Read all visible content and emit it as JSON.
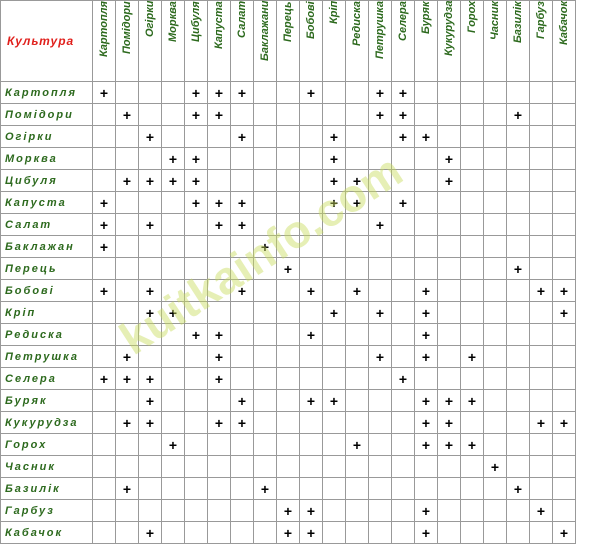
{
  "header": {
    "corner": "Культура",
    "columns": [
      "Картопля",
      "Помідори",
      "Огірки",
      "Морква",
      "Цибуля",
      "Капуста",
      "Салат",
      "Баклажани",
      "Перець",
      "Бобові",
      "Кріп",
      "Редиска",
      "Петрушка",
      "Селера",
      "Буряк",
      "Кукурудза",
      "Горох",
      "Часник",
      "Базилік",
      "Гарбуз",
      "Кабачок"
    ]
  },
  "watermark": "kuitkainfo.com",
  "rows": [
    {
      "name": "Картопля",
      "cells": [
        "+",
        null,
        null,
        null,
        "+",
        "+",
        "+",
        null,
        null,
        "+",
        null,
        null,
        "+",
        "+",
        null,
        null,
        null,
        null,
        null,
        null,
        null
      ]
    },
    {
      "name": "Помідори",
      "cells": [
        null,
        "+",
        null,
        null,
        "+",
        "+",
        null,
        null,
        null,
        null,
        null,
        null,
        "+",
        "+",
        null,
        null,
        null,
        null,
        "+",
        null,
        null
      ]
    },
    {
      "name": "Огірки",
      "cells": [
        null,
        null,
        "+",
        null,
        null,
        null,
        "+",
        null,
        null,
        null,
        "+",
        null,
        null,
        "+",
        "+",
        null,
        null,
        null,
        null,
        null,
        null
      ]
    },
    {
      "name": "Морква",
      "cells": [
        null,
        null,
        null,
        "+",
        "+",
        null,
        null,
        null,
        null,
        null,
        "+",
        null,
        null,
        null,
        null,
        "+",
        null,
        null,
        null,
        null,
        null
      ]
    },
    {
      "name": "Цибуля",
      "cells": [
        null,
        "+",
        "+",
        "+",
        "+",
        null,
        null,
        null,
        null,
        null,
        "+",
        "+",
        null,
        null,
        null,
        "+",
        null,
        null,
        null,
        null,
        null
      ]
    },
    {
      "name": "Капуста",
      "cells": [
        "+",
        null,
        null,
        null,
        "+",
        "+",
        "+",
        null,
        null,
        null,
        "+",
        "+",
        null,
        "+",
        null,
        null,
        null,
        null,
        null,
        null,
        null
      ]
    },
    {
      "name": "Салат",
      "cells": [
        "+",
        null,
        "+",
        null,
        null,
        "+",
        "+",
        null,
        null,
        null,
        null,
        null,
        "+",
        null,
        null,
        null,
        null,
        null,
        null,
        null,
        null
      ]
    },
    {
      "name": "Баклажан",
      "cells": [
        "+",
        null,
        null,
        null,
        null,
        null,
        null,
        "+",
        null,
        null,
        null,
        null,
        null,
        null,
        null,
        null,
        null,
        null,
        null,
        null,
        null
      ]
    },
    {
      "name": "Перець",
      "cells": [
        null,
        null,
        null,
        null,
        null,
        null,
        null,
        null,
        "+",
        null,
        null,
        null,
        null,
        null,
        null,
        null,
        null,
        null,
        "+",
        null,
        null
      ]
    },
    {
      "name": "Бобові",
      "cells": [
        "+",
        null,
        "+",
        null,
        null,
        null,
        "+",
        null,
        null,
        "+",
        null,
        "+",
        null,
        null,
        "+",
        null,
        null,
        null,
        null,
        "+",
        "+"
      ]
    },
    {
      "name": "Кріп",
      "cells": [
        null,
        null,
        "+",
        "+",
        null,
        null,
        null,
        null,
        null,
        null,
        "+",
        null,
        "+",
        null,
        "+",
        null,
        null,
        null,
        null,
        null,
        "+"
      ]
    },
    {
      "name": "Редиска",
      "cells": [
        null,
        null,
        null,
        null,
        "+",
        "+",
        null,
        null,
        null,
        "+",
        null,
        null,
        null,
        null,
        "+",
        null,
        null,
        null,
        null,
        null,
        null
      ]
    },
    {
      "name": "Петрушка",
      "cells": [
        null,
        "+",
        null,
        null,
        null,
        "+",
        null,
        null,
        null,
        null,
        null,
        null,
        "+",
        null,
        "+",
        null,
        "+",
        null,
        null,
        null,
        null
      ]
    },
    {
      "name": "Селера",
      "cells": [
        "+",
        "+",
        "+",
        null,
        null,
        "+",
        null,
        null,
        null,
        null,
        null,
        null,
        null,
        "+",
        null,
        null,
        null,
        null,
        null,
        null,
        null
      ]
    },
    {
      "name": "Буряк",
      "cells": [
        null,
        null,
        "+",
        null,
        null,
        null,
        "+",
        null,
        null,
        "+",
        "+",
        null,
        null,
        null,
        "+",
        "+",
        "+",
        null,
        null,
        null,
        null
      ]
    },
    {
      "name": "Кукурудза",
      "cells": [
        null,
        "+",
        "+",
        null,
        null,
        "+",
        "+",
        null,
        null,
        null,
        null,
        null,
        null,
        null,
        "+",
        "+",
        null,
        null,
        null,
        "+",
        "+"
      ]
    },
    {
      "name": "Горох",
      "cells": [
        null,
        null,
        null,
        "+",
        null,
        null,
        null,
        null,
        null,
        null,
        null,
        "+",
        null,
        null,
        "+",
        "+",
        "+",
        null,
        null,
        null,
        null
      ]
    },
    {
      "name": "Часник",
      "cells": [
        null,
        null,
        null,
        null,
        null,
        null,
        null,
        null,
        null,
        null,
        null,
        null,
        null,
        null,
        null,
        null,
        null,
        "+",
        null,
        null,
        null
      ]
    },
    {
      "name": "Базилік",
      "cells": [
        null,
        "+",
        null,
        null,
        null,
        null,
        null,
        "+",
        null,
        null,
        null,
        null,
        null,
        null,
        null,
        null,
        null,
        null,
        "+",
        null,
        null
      ]
    },
    {
      "name": "Гарбуз",
      "cells": [
        null,
        null,
        null,
        null,
        null,
        null,
        null,
        null,
        "+",
        "+",
        null,
        null,
        null,
        null,
        "+",
        null,
        null,
        null,
        null,
        "+",
        null
      ]
    },
    {
      "name": "Кабачок",
      "cells": [
        null,
        null,
        "+",
        null,
        null,
        null,
        null,
        null,
        "+",
        "+",
        null,
        null,
        null,
        null,
        "+",
        null,
        null,
        null,
        null,
        null,
        "+"
      ]
    }
  ]
}
